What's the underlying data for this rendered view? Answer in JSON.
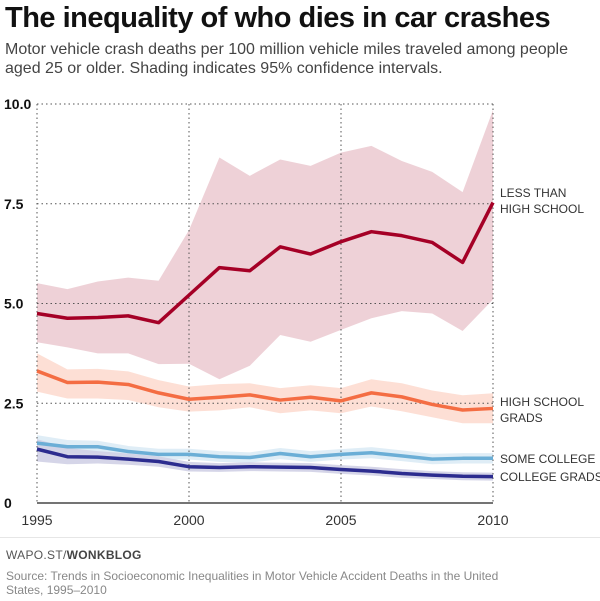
{
  "title": "The inequality of who dies in car crashes",
  "subtitle": "Motor vehicle crash deaths per 100 million vehicle miles traveled among people aged 25 or older. Shading indicates 95% confidence intervals.",
  "footer": {
    "site_prefix": "WAPO.ST/",
    "site_bold": "WONKBLOG",
    "source": "Source: Trends in Socioeconomic Inequalities in Motor Vehicle Accident Deaths in the United States, 1995–2010"
  },
  "chart_data": {
    "type": "line",
    "title": "The inequality of who dies in car crashes",
    "xlabel": "",
    "ylabel": "Deaths per 100 million vehicle miles",
    "xlim": [
      1995,
      2010
    ],
    "ylim": [
      0,
      10
    ],
    "x": [
      1995,
      1996,
      1997,
      1998,
      1999,
      2000,
      2001,
      2002,
      2003,
      2004,
      2005,
      2006,
      2007,
      2008,
      2009,
      2010
    ],
    "xticks": [
      {
        "v": 1995,
        "label": "1995"
      },
      {
        "v": 2000,
        "label": "2000"
      },
      {
        "v": 2005,
        "label": "2005"
      },
      {
        "v": 2010,
        "label": "2010"
      }
    ],
    "yticks": [
      {
        "v": 0,
        "label": "0"
      },
      {
        "v": 2.5,
        "label": "2.5"
      },
      {
        "v": 5,
        "label": "5.0"
      },
      {
        "v": 7.5,
        "label": "7.5"
      },
      {
        "v": 10,
        "label": "10.0"
      }
    ],
    "grid": true,
    "series": [
      {
        "name": "LESS THAN HIGH SCHOOL",
        "label_lines": [
          "LESS THAN",
          "HIGH SCHOOL"
        ],
        "color": "#a50026",
        "band_color": "#ecccd3",
        "values": [
          4.75,
          4.63,
          4.65,
          4.69,
          4.52,
          5.21,
          5.9,
          5.82,
          6.42,
          6.24,
          6.55,
          6.8,
          6.7,
          6.53,
          6.03,
          7.53
        ],
        "upper": [
          5.51,
          5.36,
          5.55,
          5.65,
          5.57,
          6.84,
          8.66,
          8.2,
          8.61,
          8.45,
          8.78,
          8.95,
          8.57,
          8.3,
          7.79,
          9.85
        ],
        "lower": [
          4.03,
          3.9,
          3.75,
          3.75,
          3.48,
          3.49,
          3.1,
          3.44,
          4.21,
          4.04,
          4.34,
          4.63,
          4.81,
          4.75,
          4.31,
          5.1
        ]
      },
      {
        "name": "HIGH SCHOOL GRADS",
        "label_lines": [
          "HIGH SCHOOL",
          "GRADS"
        ],
        "color": "#f46d43",
        "band_color": "#fddcd0",
        "values": [
          3.31,
          3.02,
          3.03,
          2.97,
          2.76,
          2.6,
          2.65,
          2.71,
          2.58,
          2.65,
          2.56,
          2.76,
          2.66,
          2.47,
          2.33,
          2.37
        ],
        "upper": [
          3.75,
          3.35,
          3.36,
          3.3,
          3.08,
          2.92,
          2.98,
          3.0,
          2.88,
          2.95,
          2.88,
          3.1,
          3.0,
          2.82,
          2.7,
          2.75
        ],
        "lower": [
          2.79,
          2.62,
          2.62,
          2.58,
          2.4,
          2.29,
          2.32,
          2.4,
          2.25,
          2.32,
          2.25,
          2.42,
          2.3,
          2.15,
          2.0,
          2.0
        ]
      },
      {
        "name": "SOME COLLEGE",
        "label_lines": [
          "SOME COLLEGE"
        ],
        "color": "#6baed6",
        "band_color": "#dcebf5",
        "values": [
          1.5,
          1.41,
          1.41,
          1.29,
          1.22,
          1.22,
          1.16,
          1.14,
          1.24,
          1.16,
          1.22,
          1.26,
          1.18,
          1.1,
          1.12,
          1.12
        ],
        "upper": [
          1.7,
          1.58,
          1.56,
          1.43,
          1.36,
          1.36,
          1.3,
          1.27,
          1.38,
          1.3,
          1.35,
          1.4,
          1.32,
          1.23,
          1.25,
          1.25
        ],
        "lower": [
          1.32,
          1.25,
          1.26,
          1.16,
          1.09,
          1.09,
          1.03,
          1.01,
          1.1,
          1.03,
          1.09,
          1.12,
          1.05,
          0.97,
          0.99,
          0.99
        ]
      },
      {
        "name": "COLLEGE GRADS",
        "label_lines": [
          "COLLEGE GRADS"
        ],
        "color": "#2c2c8f",
        "band_color": "#d0d0e6",
        "values": [
          1.35,
          1.16,
          1.15,
          1.1,
          1.04,
          0.91,
          0.89,
          0.91,
          0.9,
          0.89,
          0.84,
          0.8,
          0.74,
          0.7,
          0.67,
          0.66
        ],
        "upper": [
          1.6,
          1.38,
          1.3,
          1.24,
          1.17,
          1.03,
          1.0,
          1.02,
          1.01,
          1.0,
          0.95,
          0.91,
          0.85,
          0.8,
          0.77,
          0.76
        ],
        "lower": [
          1.04,
          0.97,
          0.99,
          0.96,
          0.91,
          0.79,
          0.78,
          0.8,
          0.79,
          0.78,
          0.73,
          0.69,
          0.63,
          0.6,
          0.57,
          0.56
        ]
      }
    ]
  }
}
